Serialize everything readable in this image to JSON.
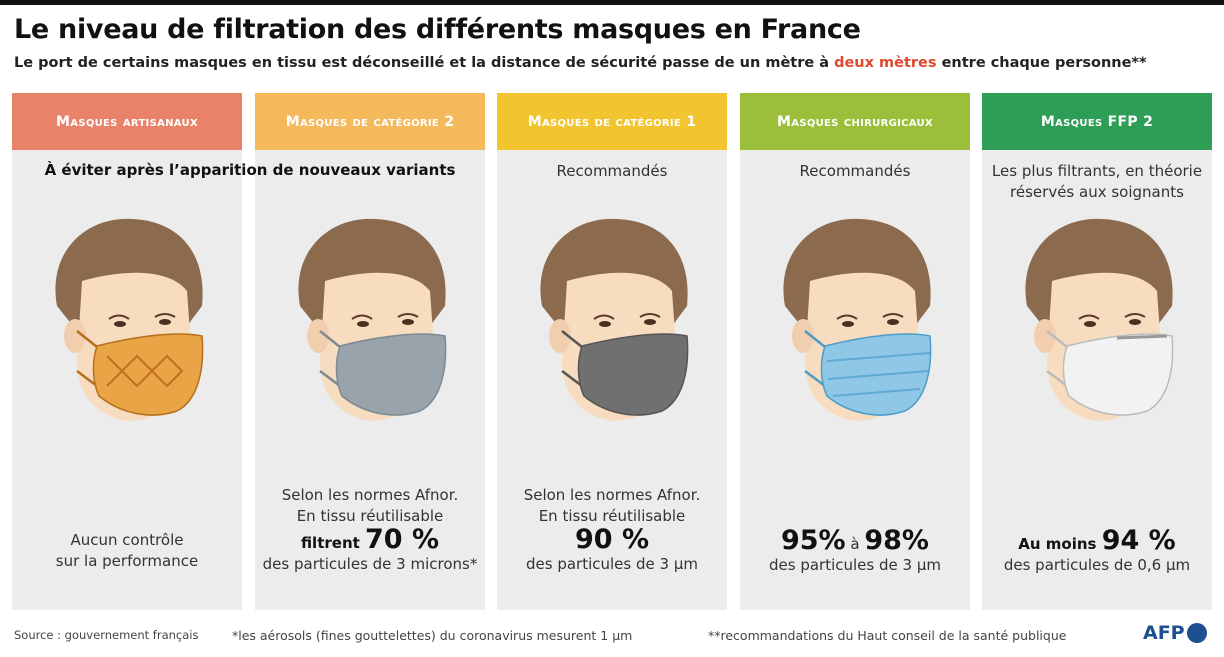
{
  "header": {
    "title": "Le niveau de filtration des différents masques en France",
    "subtitle": {
      "before": "Le port de certains masques en tissu est déconseillé et la distance de sécurité passe de un mètre à ",
      "highlight": "deux mètres",
      "after": " entre chaque personne**"
    }
  },
  "shared_note": "À éviter après l’apparition de nouveaux variants",
  "columns": [
    {
      "title": "Masques artisanaux",
      "lines": [
        "Aucun contrôle",
        "sur la performance"
      ]
    },
    {
      "title": "Masques de catégorie 2",
      "lines": [
        "Selon les normes Afnor.",
        "En tissu réutilisable"
      ],
      "prefix": "filtrent ",
      "figure": "70 %",
      "detail": "des particules de 3 microns*"
    },
    {
      "title": "Masques de catégorie 1",
      "note": "Recommandés",
      "lines": [
        "Selon les normes Afnor.",
        "En tissu réutilisable"
      ],
      "figure": "90 %",
      "detail": "des particules de 3 µm"
    },
    {
      "title": "Masques chirurgicaux",
      "note": "Recommandés",
      "figure": "95%",
      "joiner": " à ",
      "figure2": "98%",
      "detail": "des particules de 3 µm"
    },
    {
      "title": "Masques FFP 2",
      "note_lines": [
        "Les plus filtrants, en théorie",
        "réservés aux soignants"
      ],
      "prefix": "Au moins ",
      "figure": "94 %",
      "detail": "des particules de 0,6 µm"
    }
  ],
  "footer": {
    "source": "Source : gouvernement français",
    "note1": "*les aérosols (fines gouttelettes) du coronavirus mesurent 1 µm",
    "note2": "**recommandations du Haut conseil de la santé publique",
    "logo": "AFP"
  }
}
